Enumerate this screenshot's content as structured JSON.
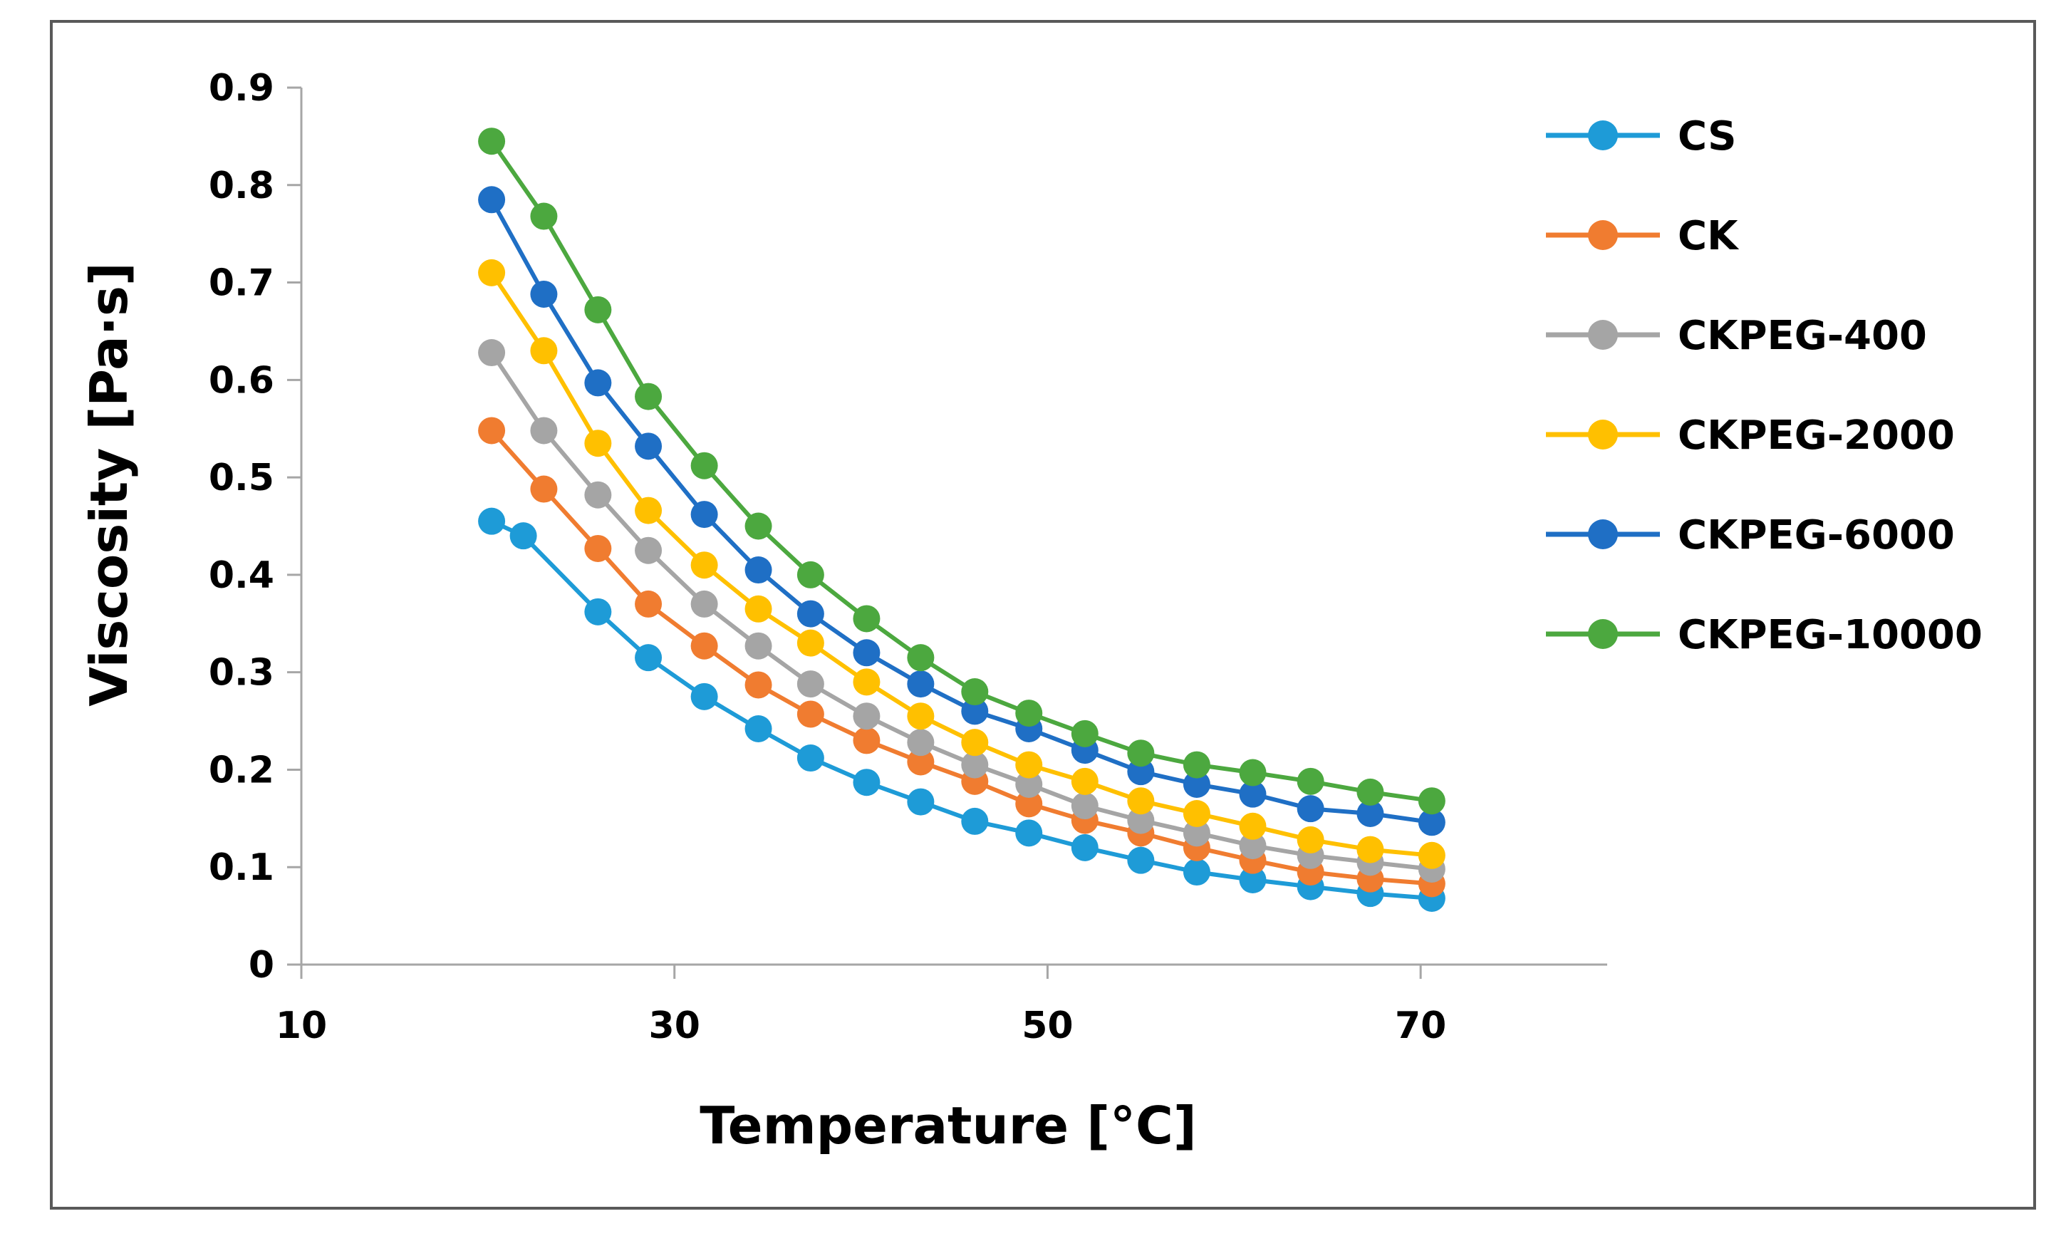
{
  "chart_data": {
    "type": "line",
    "title": "",
    "xlabel": "Temperature [°C]",
    "ylabel": "Viscosity [Pa·s]",
    "xlim": [
      10,
      80
    ],
    "ylim": [
      0,
      0.9
    ],
    "x_ticks": [
      10,
      30,
      50,
      70
    ],
    "x_tick_labels": [
      "10",
      "30",
      "50",
      "70"
    ],
    "y_ticks": [
      0,
      0.1,
      0.2,
      0.3,
      0.4,
      0.5,
      0.6,
      0.7,
      0.8,
      0.9
    ],
    "y_tick_labels": [
      "0",
      "0.1",
      "0.2",
      "0.3",
      "0.4",
      "0.5",
      "0.6",
      "0.7",
      "0.8",
      "0.9"
    ],
    "grid": false,
    "legend_position": "right",
    "x": [
      20.2,
      23,
      25.9,
      28.6,
      31.6,
      34.5,
      37.3,
      40.3,
      43.2,
      46.1,
      49,
      52,
      55,
      58,
      61,
      64.1,
      67.3,
      70.6
    ],
    "series": [
      {
        "name": "CS",
        "color": "#1E9BD7",
        "x": [
          20.2,
          21.9,
          25.9,
          28.6,
          31.6,
          34.5,
          37.3,
          40.3,
          43.2,
          46.1,
          49,
          52,
          55,
          58,
          61,
          64.1,
          67.3,
          70.6
        ],
        "values": [
          0.455,
          0.44,
          0.362,
          0.315,
          0.275,
          0.242,
          0.212,
          0.187,
          0.167,
          0.147,
          0.135,
          0.12,
          0.107,
          0.095,
          0.087,
          0.08,
          0.073,
          0.068
        ]
      },
      {
        "name": "CK",
        "color": "#F07C30",
        "values": [
          0.548,
          0.488,
          0.427,
          0.37,
          0.327,
          0.287,
          0.257,
          0.23,
          0.208,
          0.188,
          0.165,
          0.148,
          0.135,
          0.12,
          0.107,
          0.095,
          0.088,
          0.083
        ]
      },
      {
        "name": "CKPEG-400",
        "color": "#A5A5A5",
        "values": [
          0.628,
          0.548,
          0.482,
          0.425,
          0.37,
          0.327,
          0.288,
          0.255,
          0.228,
          0.205,
          0.185,
          0.163,
          0.148,
          0.135,
          0.122,
          0.112,
          0.105,
          0.098
        ]
      },
      {
        "name": "CKPEG-2000",
        "color": "#FFC000",
        "values": [
          0.71,
          0.63,
          0.535,
          0.466,
          0.41,
          0.365,
          0.33,
          0.29,
          0.255,
          0.228,
          0.205,
          0.188,
          0.168,
          0.155,
          0.142,
          0.128,
          0.118,
          0.112
        ]
      },
      {
        "name": "CKPEG-6000",
        "color": "#1F6FC5",
        "values": [
          0.785,
          0.688,
          0.597,
          0.532,
          0.462,
          0.405,
          0.36,
          0.32,
          0.288,
          0.26,
          0.242,
          0.22,
          0.198,
          0.185,
          0.175,
          0.16,
          0.155,
          0.146
        ]
      },
      {
        "name": "CKPEG-10000",
        "color": "#4CA83F",
        "values": [
          0.845,
          0.768,
          0.672,
          0.583,
          0.512,
          0.45,
          0.4,
          0.355,
          0.315,
          0.28,
          0.258,
          0.237,
          0.217,
          0.205,
          0.197,
          0.188,
          0.177,
          0.168
        ]
      }
    ]
  }
}
